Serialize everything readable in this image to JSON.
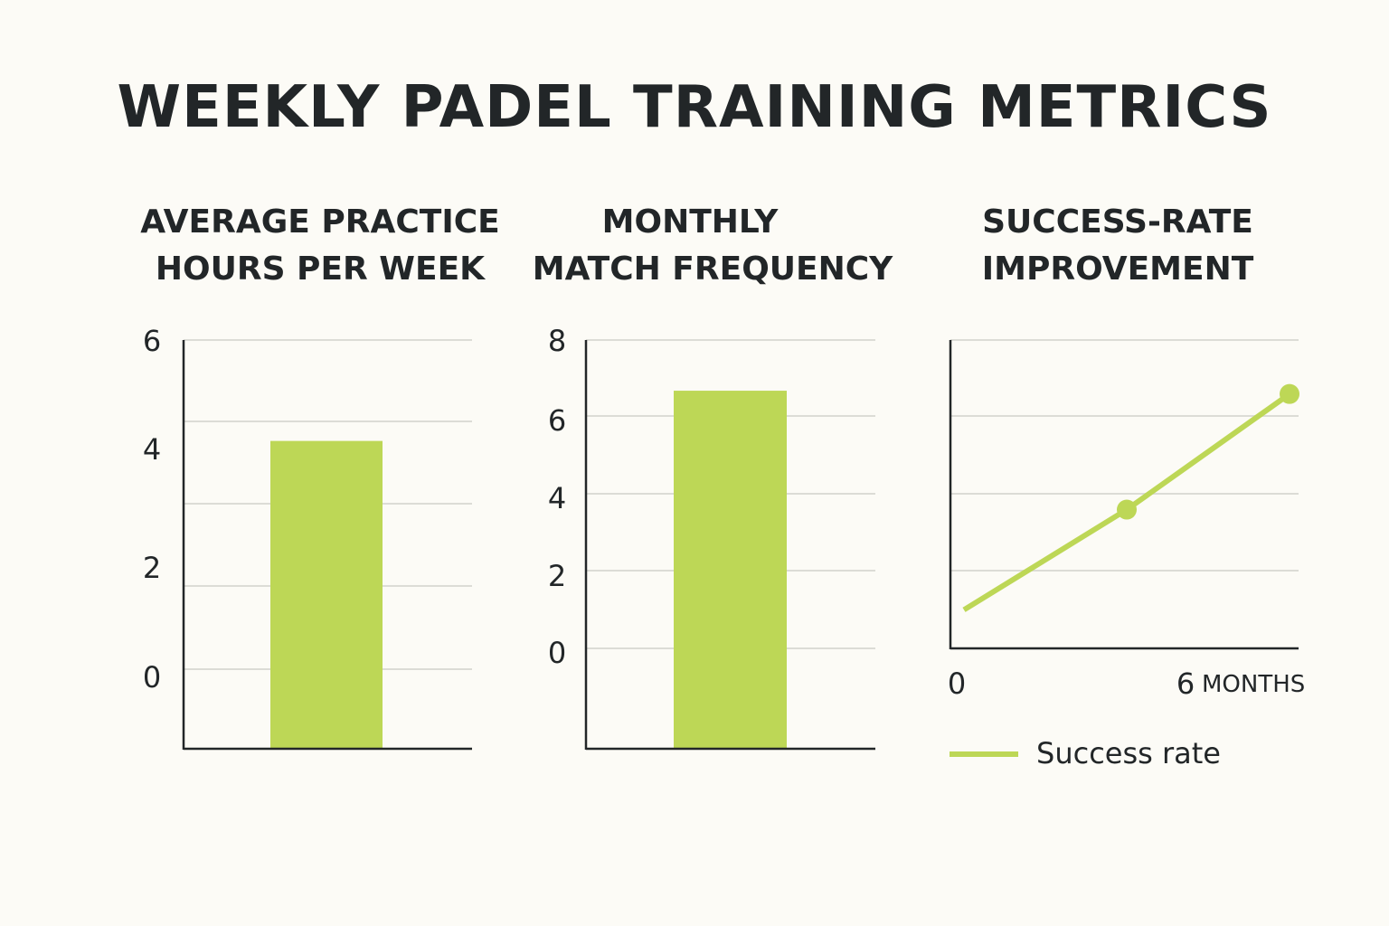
{
  "title": "WEEKLY PADEL TRAINING METRICS",
  "colors": {
    "accent": "#bdd756",
    "axis": "#222628",
    "grid": "#dcdcd6",
    "background": "#fcfbf6"
  },
  "chart_data": [
    {
      "type": "bar",
      "title_lines": [
        "AVERAGE PRACTICE",
        "HOURS PER WEEK"
      ],
      "categories": [
        ""
      ],
      "values": [
        4.2
      ],
      "yticks": [
        "6",
        "4",
        "2",
        "0"
      ],
      "ylim": [
        0,
        6
      ],
      "grid": true
    },
    {
      "type": "bar",
      "title_lines": [
        "MONTHLY",
        "MATCH FREQUENCY"
      ],
      "categories": [
        ""
      ],
      "values": [
        6.7
      ],
      "yticks": [
        "8",
        "6",
        "4",
        "2",
        "0"
      ],
      "ylim": [
        0,
        8
      ],
      "grid": true
    },
    {
      "type": "line",
      "title_lines": [
        "SUCCESS-RATE",
        "IMPROVEMENT"
      ],
      "x": [
        0,
        3,
        6
      ],
      "y": [
        0.5,
        1.8,
        3.3
      ],
      "xticks": [
        "0",
        "6"
      ],
      "xlabel": "MONTHS",
      "ylim": [
        0,
        4
      ],
      "xlim": [
        -0.1,
        6
      ],
      "grid": true,
      "legend": {
        "label": "Success rate",
        "placement": "bottom"
      }
    }
  ]
}
